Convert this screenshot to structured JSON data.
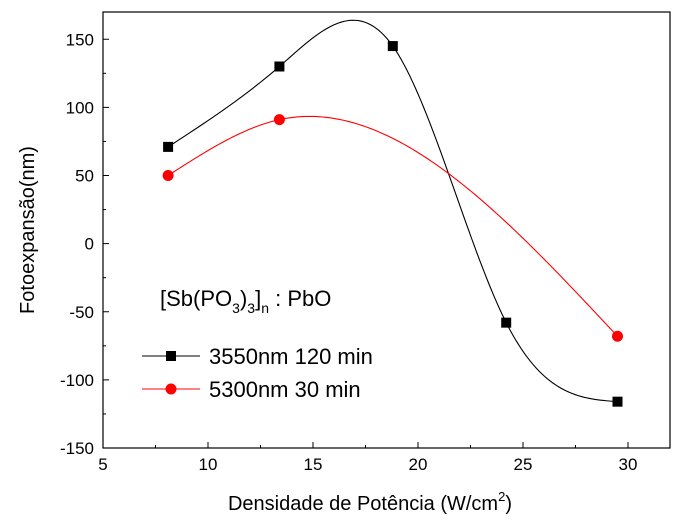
{
  "chart_data": {
    "type": "line",
    "title": "",
    "xlabel": "Densidade de Potência (W/cm",
    "xlabel_sup": "2",
    "xlabel_end": ")",
    "ylabel": "Fotoexpansão(nm)",
    "xlim": [
      5,
      32
    ],
    "ylim": [
      -150,
      170
    ],
    "xticks": [
      5,
      10,
      15,
      20,
      25,
      30
    ],
    "yticks": [
      -150,
      -100,
      -50,
      0,
      50,
      100,
      150
    ],
    "xtick_labels": [
      "5",
      "10",
      "15",
      "20",
      "25",
      "30"
    ],
    "ytick_labels": [
      "-150",
      "-100",
      "-50",
      "0",
      "50",
      "100",
      "150"
    ],
    "grid": false,
    "legend_position": "lower-left",
    "annotation": {
      "parts": [
        "[Sb(PO",
        "3",
        ")",
        "3",
        "]",
        "n",
        " : PbO"
      ]
    },
    "series": [
      {
        "name": "3550nm 120 min",
        "marker": "square",
        "color": "#000000",
        "x": [
          8.1,
          13.4,
          18.8,
          24.2,
          29.5
        ],
        "y": [
          71,
          130,
          145,
          -58,
          -116
        ]
      },
      {
        "name": "5300nm 30 min",
        "marker": "circle",
        "color": "#ff0000",
        "x": [
          8.1,
          13.4,
          29.5
        ],
        "y": [
          50,
          91,
          -68
        ]
      }
    ]
  }
}
